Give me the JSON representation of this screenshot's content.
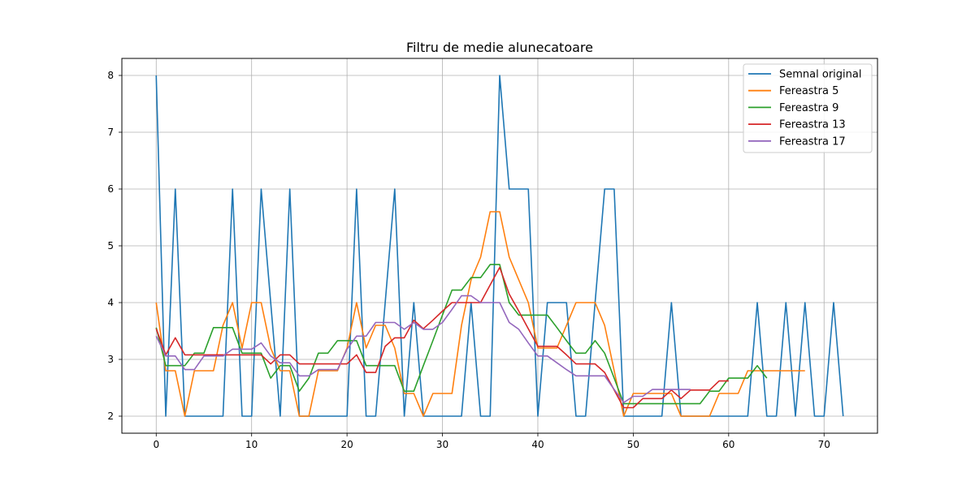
{
  "chart_data": {
    "type": "line",
    "title": "Filtru de medie alunecatoare",
    "xlabel": "",
    "ylabel": "",
    "xlim": [
      -3.6,
      75.6
    ],
    "ylim": [
      1.7,
      8.3
    ],
    "xticks": [
      0,
      10,
      20,
      30,
      40,
      50,
      60,
      70
    ],
    "yticks": [
      2,
      3,
      4,
      5,
      6,
      7,
      8
    ],
    "xtick_labels": [
      "0",
      "10",
      "20",
      "30",
      "40",
      "50",
      "60",
      "70"
    ],
    "ytick_labels": [
      "2",
      "3",
      "4",
      "5",
      "6",
      "7",
      "8"
    ],
    "grid": true,
    "legend_position": "top-right",
    "series": [
      {
        "name": "Semnal original",
        "color": "#1f77b4",
        "x_start": 0,
        "values": [
          8,
          2,
          6,
          2,
          2,
          2,
          2,
          2,
          6,
          2,
          2,
          6,
          4,
          2,
          6,
          2,
          2,
          2,
          2,
          2,
          2,
          6,
          2,
          2,
          4,
          6,
          2,
          4,
          2,
          2,
          2,
          2,
          2,
          4,
          2,
          2,
          8,
          6,
          6,
          6,
          2,
          4,
          4,
          4,
          2,
          2,
          4,
          6,
          6,
          2,
          2,
          2,
          2,
          2,
          4,
          2,
          2,
          2,
          2,
          2,
          2,
          2,
          2,
          4,
          2,
          2,
          4,
          2,
          4,
          2,
          2,
          4,
          2
        ]
      },
      {
        "name": "Fereastra 5",
        "color": "#ff7f0e",
        "x_start": 0,
        "values": [
          4,
          2.8,
          2.8,
          2,
          2.8,
          2.8,
          2.8,
          3.6,
          4,
          3.2,
          4,
          4,
          3.2,
          2.8,
          2.8,
          2,
          2,
          2.8,
          2.8,
          2.8,
          3.2,
          4,
          3.2,
          3.6,
          3.6,
          3.2,
          2.4,
          2.4,
          2,
          2.4,
          2.4,
          2.4,
          3.6,
          4.4,
          4.8,
          5.6,
          5.6,
          4.8,
          4.4,
          4,
          3.2,
          3.2,
          3.2,
          3.6,
          4,
          4,
          4,
          3.6,
          2.8,
          2,
          2.4,
          2.4,
          2.4,
          2.4,
          2.4,
          2,
          2,
          2,
          2,
          2.4,
          2.4,
          2.4,
          2.8,
          2.8,
          2.8,
          2.8,
          2.8,
          2.8,
          2.8
        ]
      },
      {
        "name": "Fereastra 9",
        "color": "#2ca02c",
        "x_start": 0,
        "values": [
          3.56,
          2.89,
          2.89,
          2.89,
          3.11,
          3.11,
          3.56,
          3.56,
          3.56,
          3.11,
          3.11,
          3.11,
          2.67,
          2.89,
          2.89,
          2.44,
          2.67,
          3.11,
          3.11,
          3.33,
          3.33,
          3.33,
          2.89,
          2.89,
          2.89,
          2.89,
          2.44,
          2.44,
          2.89,
          3.33,
          3.78,
          4.22,
          4.22,
          4.44,
          4.44,
          4.67,
          4.67,
          4,
          3.78,
          3.78,
          3.78,
          3.78,
          3.56,
          3.33,
          3.11,
          3.11,
          3.33,
          3.11,
          2.67,
          2.22,
          2.22,
          2.22,
          2.22,
          2.22,
          2.22,
          2.22,
          2.22,
          2.22,
          2.44,
          2.44,
          2.67,
          2.67,
          2.67,
          2.89,
          2.67
        ]
      },
      {
        "name": "Fereastra 13",
        "color": "#d62728",
        "x_start": 0,
        "values": [
          3.54,
          3.08,
          3.38,
          3.08,
          3.08,
          3.08,
          3.08,
          3.08,
          3.08,
          3.08,
          3.08,
          3.08,
          2.92,
          3.08,
          3.08,
          2.92,
          2.92,
          2.92,
          2.92,
          2.92,
          2.92,
          3.08,
          2.77,
          2.77,
          3.23,
          3.38,
          3.38,
          3.69,
          3.54,
          3.69,
          3.85,
          4,
          4,
          4,
          4,
          4.31,
          4.62,
          4.15,
          3.85,
          3.54,
          3.23,
          3.23,
          3.23,
          3.08,
          2.92,
          2.92,
          2.92,
          2.77,
          2.46,
          2.15,
          2.15,
          2.31,
          2.31,
          2.31,
          2.46,
          2.31,
          2.46,
          2.46,
          2.46,
          2.62,
          2.62
        ]
      },
      {
        "name": "Fereastra 17",
        "color": "#9467bd",
        "x_start": 0,
        "values": [
          3.41,
          3.06,
          3.06,
          2.82,
          2.82,
          3.06,
          3.06,
          3.06,
          3.18,
          3.18,
          3.18,
          3.29,
          3.06,
          2.94,
          2.94,
          2.71,
          2.71,
          2.82,
          2.82,
          2.82,
          3.18,
          3.41,
          3.41,
          3.65,
          3.65,
          3.65,
          3.53,
          3.65,
          3.53,
          3.53,
          3.65,
          3.88,
          4.12,
          4.12,
          4,
          4,
          4,
          3.65,
          3.53,
          3.29,
          3.06,
          3.06,
          2.94,
          2.82,
          2.71,
          2.71,
          2.71,
          2.71,
          2.47,
          2.24,
          2.35,
          2.35,
          2.47,
          2.47,
          2.47,
          2.47,
          2.47
        ]
      }
    ]
  }
}
